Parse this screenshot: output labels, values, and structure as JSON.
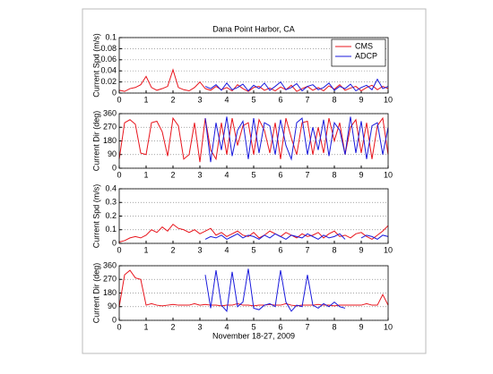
{
  "chart_data": [
    {
      "type": "line",
      "title": "Dana Point Harbor, CA",
      "ylabel": "Current Spd (m/s)",
      "grid": true,
      "legend": "upper right",
      "x": [
        0,
        0.2,
        0.4,
        0.6,
        0.8,
        1,
        1.2,
        1.4,
        1.6,
        1.8,
        2,
        2.2,
        2.4,
        2.6,
        2.8,
        3,
        3.2,
        3.4,
        3.6,
        3.8,
        4,
        4.2,
        4.4,
        4.6,
        4.8,
        5,
        5.2,
        5.4,
        5.6,
        5.8,
        6,
        6.2,
        6.4,
        6.6,
        6.8,
        7,
        7.2,
        7.4,
        7.6,
        7.8,
        8,
        8.2,
        8.4,
        8.6,
        8.8,
        9,
        9.2,
        9.4,
        9.6,
        9.8,
        10
      ],
      "xlim": [
        0,
        10
      ],
      "xticks": [
        0,
        1,
        2,
        3,
        4,
        5,
        6,
        7,
        8,
        9,
        10
      ],
      "ylim": [
        0,
        0.1
      ],
      "yticks": [
        0,
        0.02,
        0.04,
        0.06,
        0.08,
        0.1
      ],
      "series": [
        {
          "name": "CMS",
          "color": "#e8141c",
          "values": [
            0.005,
            0.003,
            0.008,
            0.01,
            0.015,
            0.03,
            0.01,
            0.005,
            0.008,
            0.012,
            0.042,
            0.01,
            0.006,
            0.004,
            0.01,
            0.02,
            0.008,
            0.005,
            0.012,
            0.006,
            0.01,
            0.004,
            0.015,
            0.008,
            0.003,
            0.01,
            0.012,
            0.005,
            0.009,
            0.004,
            0.011,
            0.006,
            0.014,
            0.003,
            0.008,
            0.012,
            0.005,
            0.01,
            0.004,
            0.013,
            0.007,
            0.015,
            0.005,
            0.009,
            0.012,
            0.004,
            0.01,
            0.014,
            0.006,
            0.012,
            0.008
          ]
        },
        {
          "name": "ADCP",
          "color": "#1a1adc",
          "values": [
            null,
            null,
            null,
            null,
            null,
            null,
            null,
            null,
            null,
            null,
            null,
            null,
            null,
            null,
            null,
            null,
            0.012,
            0.008,
            0.015,
            0.005,
            0.018,
            0.006,
            0.01,
            0.016,
            0.004,
            0.014,
            0.008,
            0.018,
            0.005,
            0.012,
            0.02,
            0.006,
            0.01,
            0.017,
            0.004,
            0.012,
            0.015,
            0.006,
            0.01,
            0.018,
            0.005,
            0.012,
            0.008,
            0.016,
            0.004,
            0.01,
            0.014,
            0.006,
            0.025,
            0.008,
            0.012
          ]
        }
      ]
    },
    {
      "type": "line",
      "ylabel": "Current Dir (deg)",
      "grid": true,
      "x": [
        0,
        0.2,
        0.4,
        0.6,
        0.8,
        1,
        1.2,
        1.4,
        1.6,
        1.8,
        2,
        2.2,
        2.4,
        2.6,
        2.8,
        3,
        3.2,
        3.4,
        3.6,
        3.8,
        4,
        4.2,
        4.4,
        4.6,
        4.8,
        5,
        5.2,
        5.4,
        5.6,
        5.8,
        6,
        6.2,
        6.4,
        6.6,
        6.8,
        7,
        7.2,
        7.4,
        7.6,
        7.8,
        8,
        8.2,
        8.4,
        8.6,
        8.8,
        9,
        9.2,
        9.4,
        9.6,
        9.8,
        10
      ],
      "xlim": [
        0,
        10
      ],
      "xticks": [
        0,
        1,
        2,
        3,
        4,
        5,
        6,
        7,
        8,
        9,
        10
      ],
      "ylim": [
        0,
        360
      ],
      "yticks": [
        0,
        90,
        180,
        270,
        360
      ],
      "series": [
        {
          "color": "#e8141c",
          "values": [
            60,
            300,
            320,
            290,
            100,
            90,
            300,
            310,
            240,
            80,
            330,
            280,
            60,
            90,
            300,
            40,
            330,
            120,
            60,
            300,
            90,
            330,
            150,
            280,
            300,
            90,
            320,
            250,
            100,
            300,
            60,
            330,
            200,
            90,
            300,
            310,
            90,
            270,
            100,
            330,
            180,
            300,
            90,
            270,
            320,
            100,
            300,
            60,
            280,
            330,
            90
          ]
        },
        {
          "color": "#1a1adc",
          "values": [
            null,
            null,
            null,
            null,
            null,
            null,
            null,
            null,
            null,
            null,
            null,
            null,
            null,
            null,
            null,
            null,
            330,
            40,
            300,
            120,
            340,
            80,
            250,
            310,
            60,
            330,
            100,
            300,
            280,
            90,
            320,
            150,
            60,
            300,
            330,
            90,
            270,
            120,
            320,
            80,
            300,
            250,
            90,
            340,
            100,
            310,
            60,
            280,
            300,
            90,
            270
          ]
        }
      ]
    },
    {
      "type": "line",
      "ylabel": "Current Spd (m/s)",
      "grid": true,
      "x": [
        0,
        0.2,
        0.4,
        0.6,
        0.8,
        1,
        1.2,
        1.4,
        1.6,
        1.8,
        2,
        2.2,
        2.4,
        2.6,
        2.8,
        3,
        3.2,
        3.4,
        3.6,
        3.8,
        4,
        4.2,
        4.4,
        4.6,
        4.8,
        5,
        5.2,
        5.4,
        5.6,
        5.8,
        6,
        6.2,
        6.4,
        6.6,
        6.8,
        7,
        7.2,
        7.4,
        7.6,
        7.8,
        8,
        8.2,
        8.4,
        8.6,
        8.8,
        9,
        9.2,
        9.4,
        9.6,
        9.8,
        10
      ],
      "xlim": [
        0,
        10
      ],
      "xticks": [
        0,
        1,
        2,
        3,
        4,
        5,
        6,
        7,
        8,
        9,
        10
      ],
      "ylim": [
        0,
        0.4
      ],
      "yticks": [
        0,
        0.1,
        0.2,
        0.3,
        0.4
      ],
      "series": [
        {
          "color": "#e8141c",
          "values": [
            0.01,
            0.02,
            0.04,
            0.05,
            0.04,
            0.06,
            0.1,
            0.08,
            0.12,
            0.09,
            0.14,
            0.11,
            0.1,
            0.08,
            0.1,
            0.07,
            0.09,
            0.11,
            0.06,
            0.08,
            0.05,
            0.07,
            0.09,
            0.06,
            0.05,
            0.08,
            0.04,
            0.06,
            0.09,
            0.07,
            0.05,
            0.08,
            0.06,
            0.04,
            0.07,
            0.05,
            0.06,
            0.08,
            0.04,
            0.07,
            0.09,
            0.05,
            0.06,
            0.04,
            0.07,
            0.08,
            0.05,
            0.03,
            0.06,
            0.09,
            0.13
          ]
        },
        {
          "color": "#1a1adc",
          "values": [
            null,
            null,
            null,
            null,
            null,
            null,
            null,
            null,
            null,
            null,
            null,
            null,
            null,
            null,
            null,
            null,
            0.03,
            0.05,
            0.04,
            0.06,
            0.03,
            0.05,
            0.07,
            0.04,
            0.06,
            0.05,
            0.03,
            0.06,
            0.04,
            0.07,
            0.05,
            0.03,
            0.06,
            0.05,
            0.04,
            0.07,
            0.05,
            0.03,
            0.06,
            0.04,
            0.05,
            0.07,
            0.03,
            null,
            null,
            0.04,
            0.06,
            0.05,
            0.03,
            0.06,
            0.05
          ]
        }
      ]
    },
    {
      "type": "line",
      "ylabel": "Current Dir (deg)",
      "xlabel": "November 18-27, 2009",
      "grid": true,
      "x": [
        0,
        0.2,
        0.4,
        0.6,
        0.8,
        1,
        1.2,
        1.4,
        1.6,
        1.8,
        2,
        2.2,
        2.4,
        2.6,
        2.8,
        3,
        3.2,
        3.4,
        3.6,
        3.8,
        4,
        4.2,
        4.4,
        4.6,
        4.8,
        5,
        5.2,
        5.4,
        5.6,
        5.8,
        6,
        6.2,
        6.4,
        6.6,
        6.8,
        7,
        7.2,
        7.4,
        7.6,
        7.8,
        8,
        8.2,
        8.4,
        8.6,
        8.8,
        9,
        9.2,
        9.4,
        9.6,
        9.8,
        10
      ],
      "xlim": [
        0,
        10
      ],
      "xticks": [
        0,
        1,
        2,
        3,
        4,
        5,
        6,
        7,
        8,
        9,
        10
      ],
      "ylim": [
        0,
        360
      ],
      "yticks": [
        0,
        90,
        180,
        270,
        360
      ],
      "series": [
        {
          "color": "#e8141c",
          "values": [
            90,
            300,
            330,
            280,
            270,
            100,
            110,
            100,
            95,
            100,
            105,
            100,
            100,
            100,
            110,
            100,
            105,
            100,
            100,
            95,
            100,
            100,
            110,
            100,
            100,
            95,
            100,
            100,
            105,
            100,
            100,
            110,
            100,
            95,
            100,
            100,
            100,
            105,
            100,
            100,
            95,
            100,
            100,
            100,
            100,
            100,
            110,
            100,
            100,
            170,
            100
          ]
        },
        {
          "color": "#1a1adc",
          "values": [
            null,
            null,
            null,
            null,
            null,
            null,
            null,
            null,
            null,
            null,
            null,
            null,
            null,
            null,
            null,
            null,
            300,
            80,
            330,
            100,
            60,
            320,
            90,
            120,
            340,
            80,
            70,
            100,
            110,
            90,
            330,
            120,
            60,
            100,
            90,
            300,
            100,
            80,
            110,
            90,
            120,
            90,
            80,
            null,
            null,
            null,
            null,
            null,
            null,
            null,
            null
          ]
        }
      ]
    }
  ]
}
